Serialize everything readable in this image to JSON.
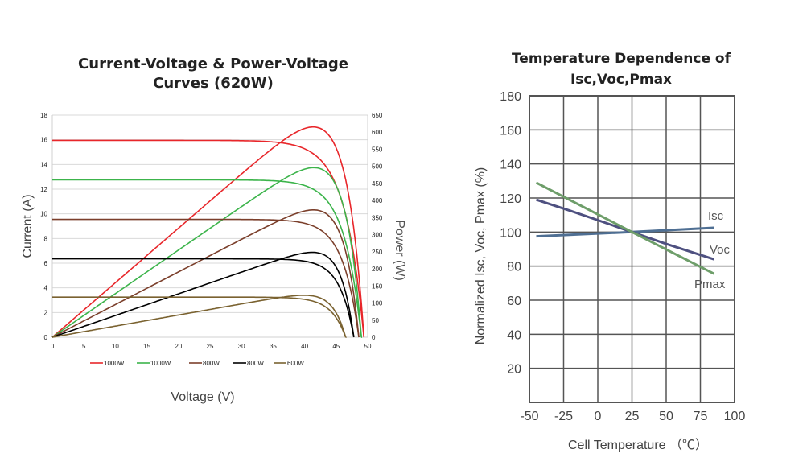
{
  "chart_data": [
    {
      "type": "line",
      "title": [
        "Current-Voltage & Power-Voltage",
        "Curves  (620W)"
      ],
      "xlabel": "Voltage (V)",
      "ylabel": "Current (A)",
      "y2label": "Power (W)",
      "xlim": [
        0,
        50
      ],
      "ylim": [
        0,
        18
      ],
      "y2lim": [
        0,
        650
      ],
      "xticks": [
        "0",
        "5",
        "10",
        "15",
        "20",
        "25",
        "30",
        "35",
        "40",
        "45",
        "50"
      ],
      "yticks": [
        "0",
        "2",
        "4",
        "6",
        "8",
        "10",
        "12",
        "14",
        "16",
        "18"
      ],
      "y2ticks": [
        "0",
        "50",
        "100",
        "150",
        "200",
        "250",
        "300",
        "350",
        "400",
        "450",
        "500",
        "550",
        "600",
        "650"
      ],
      "grid": true,
      "legend_position": "bottom",
      "series": [
        {
          "name": "1000W",
          "color": "#e8262a",
          "isc": 15.95,
          "voc": 49.4,
          "vmp": 41.0,
          "pmax": 615
        },
        {
          "name": "1000W",
          "color": "#3cb44b",
          "isc": 12.75,
          "voc": 49.0,
          "vmp": 40.7,
          "pmax": 495
        },
        {
          "name": "800W",
          "color": "#7b3f2b",
          "isc": 9.55,
          "voc": 48.6,
          "vmp": 40.8,
          "pmax": 372
        },
        {
          "name": "800W",
          "color": "#000000",
          "isc": 6.35,
          "voc": 47.8,
          "vmp": 40.7,
          "pmax": 248
        },
        {
          "name": "600W",
          "color": "#7a6230",
          "isc": 3.25,
          "voc": 46.5,
          "vmp": 40.8,
          "pmax": 122
        }
      ]
    },
    {
      "type": "line",
      "title": [
        "Temperature Dependence of",
        "Isc,Voc,Pmax"
      ],
      "xlabel": "Cell Temperature （℃）",
      "ylabel": "Normalized Isc, Voc, Pmax (%)",
      "xlim": [
        -50,
        100
      ],
      "ylim": [
        0,
        180
      ],
      "xticks": [
        "-50",
        "-25",
        "0",
        "25",
        "50",
        "75",
        "100"
      ],
      "yticks": [
        "20",
        "40",
        "60",
        "80",
        "100",
        "120",
        "140",
        "160",
        "180"
      ],
      "grid": true,
      "series": [
        {
          "name": "Isc",
          "color": "#4f6f93",
          "x": [
            -45,
            25,
            85
          ],
          "y": [
            97.5,
            100,
            102.5
          ]
        },
        {
          "name": "Voc",
          "color": "#4e5080",
          "x": [
            -45,
            -20,
            0,
            25,
            50,
            85
          ],
          "y": [
            119,
            112.5,
            107,
            100,
            93,
            84
          ]
        },
        {
          "name": "Pmax",
          "color": "#6e9e6a",
          "x": [
            -45,
            25,
            85
          ],
          "y": [
            129,
            100,
            75.5
          ]
        }
      ]
    }
  ]
}
